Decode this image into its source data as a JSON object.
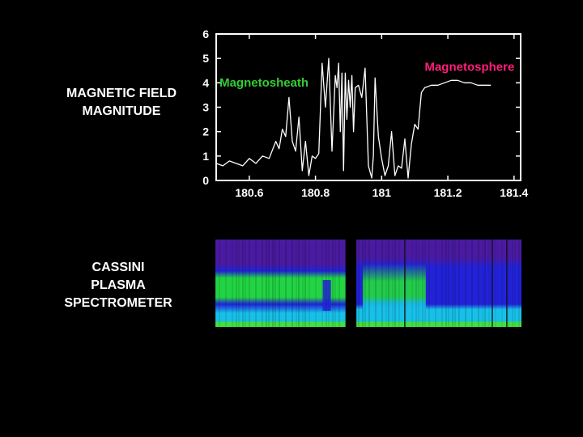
{
  "panels": {
    "magnetic_field": {
      "label_lines": [
        "MAGNETIC FIELD",
        "MAGNITUDE"
      ]
    },
    "plasma": {
      "label_lines": [
        "CASSINI",
        "PLASMA",
        "SPECTROMETER"
      ]
    }
  },
  "chart_data": [
    {
      "type": "line",
      "title": "",
      "xlabel": "",
      "ylabel": "",
      "xlim": [
        180.5,
        181.42
      ],
      "ylim": [
        0,
        6
      ],
      "xticks": [
        180.6,
        180.8,
        181,
        181.2,
        181.4
      ],
      "xtick_labels": [
        "180.6",
        "180.8",
        "181",
        "181.2",
        "181.4"
      ],
      "yticks": [
        0,
        1,
        2,
        3,
        4,
        5,
        6
      ],
      "grid": false,
      "annotations": [
        {
          "text": "Magnetosheath",
          "x": 180.51,
          "y": 3.85,
          "color": "#33cc33"
        },
        {
          "text": "Magnetosphere",
          "x": 181.13,
          "y": 4.5,
          "color": "#ff1f7a"
        }
      ],
      "series": [
        {
          "color": "#ffffff",
          "x": [
            180.5,
            180.52,
            180.54,
            180.56,
            180.58,
            180.6,
            180.62,
            180.64,
            180.66,
            180.68,
            180.69,
            180.7,
            180.71,
            180.72,
            180.73,
            180.74,
            180.75,
            180.76,
            180.77,
            180.78,
            180.79,
            180.8,
            180.81,
            180.82,
            180.83,
            180.84,
            180.85,
            180.86,
            180.865,
            180.87,
            180.875,
            180.88,
            180.885,
            180.89,
            180.895,
            180.9,
            180.905,
            180.91,
            180.915,
            180.92,
            180.93,
            180.94,
            180.95,
            180.96,
            180.97,
            180.975,
            180.98,
            180.99,
            181.0,
            181.01,
            181.02,
            181.03,
            181.04,
            181.05,
            181.06,
            181.07,
            181.08,
            181.09,
            181.1,
            181.11,
            181.12,
            181.13,
            181.15,
            181.17,
            181.19,
            181.21,
            181.23,
            181.25,
            181.27,
            181.29,
            181.31,
            181.33
          ],
          "values": [
            0.7,
            0.6,
            0.8,
            0.7,
            0.6,
            0.9,
            0.7,
            1.0,
            0.9,
            1.6,
            1.3,
            2.1,
            1.8,
            3.4,
            1.6,
            1.2,
            2.6,
            0.4,
            1.6,
            0.2,
            1.0,
            0.9,
            1.1,
            4.8,
            3.0,
            5.0,
            1.2,
            4.3,
            3.8,
            4.8,
            2.0,
            4.4,
            0.4,
            4.4,
            2.5,
            4.1,
            3.0,
            4.3,
            2.0,
            3.8,
            3.9,
            3.4,
            4.6,
            0.6,
            0.1,
            1.0,
            4.2,
            1.8,
            0.9,
            0.2,
            0.6,
            2.0,
            0.2,
            0.6,
            0.5,
            1.7,
            0.1,
            1.5,
            2.3,
            2.1,
            3.6,
            3.8,
            3.9,
            3.9,
            4.0,
            4.1,
            4.1,
            4.0,
            4.0,
            3.9,
            3.9,
            3.9
          ]
        }
      ]
    },
    {
      "type": "heatmap",
      "title": "",
      "gaps": [
        {
          "from": 0.425,
          "to": 0.46
        }
      ],
      "colors": {
        "top": "#4a1aa0",
        "mid": "#2222d8",
        "band": "#22d444",
        "low": "#18c0e8",
        "bottom": "#40e040"
      }
    }
  ]
}
